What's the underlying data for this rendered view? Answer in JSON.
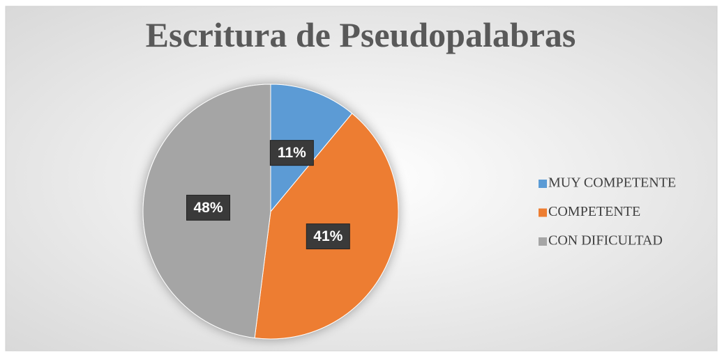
{
  "chart_data": {
    "type": "pie",
    "title": "Escritura de Pseudopalabras",
    "categories": [
      "MUY COMPETENTE",
      "COMPETENTE",
      "CON DIFICULTAD"
    ],
    "values": [
      11,
      41,
      48
    ],
    "value_labels": [
      "11%",
      "41%",
      "48%"
    ],
    "colors": [
      "#5b9bd5",
      "#ed7d31",
      "#a5a5a5"
    ],
    "legend": "right"
  }
}
